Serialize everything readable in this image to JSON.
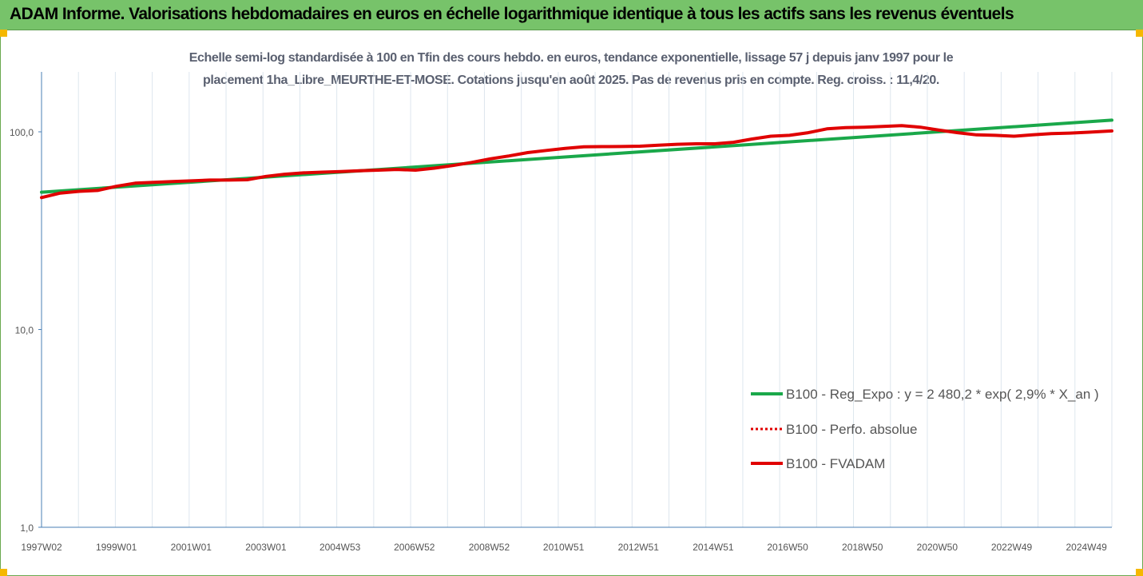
{
  "header": {
    "title": "ADAM Informe. Valorisations hebdomadaires en euros en échelle logarithmique identique à tous les actifs sans les revenus éventuels"
  },
  "chart_data": {
    "type": "line",
    "title_line1": "Echelle semi-log standardisée à 100 en Tfin des cours hebdo. en euros, tendance exponentielle, lissage 57 j depuis janv 1997 pour le",
    "title_line2": "placement 1ha_Libre_MEURTHE-ET-MOSE. Cotations jusqu'en août 2025.  Pas de revenus pris en compte. Reg. croiss. : 11,4/20.",
    "y_scale": "log",
    "ylim": [
      1,
      200
    ],
    "yticks": [
      1,
      10,
      100
    ],
    "ytick_labels": [
      "1,0",
      "10,0",
      "100,0"
    ],
    "xlim": [
      1997.0,
      2025.62
    ],
    "xtick_labels": [
      "1997W02",
      "1999W01",
      "2001W01",
      "2003W01",
      "2004W53",
      "2006W52",
      "2008W52",
      "2010W51",
      "2012W51",
      "2014W51",
      "2016W50",
      "2018W50",
      "2020W50",
      "2022W49",
      "2024W49"
    ],
    "xtick_positions": [
      1997.0,
      1999.0,
      2001.0,
      2003.0,
      2004.98,
      2006.97,
      2008.97,
      2010.96,
      2012.96,
      2014.96,
      2016.95,
      2018.95,
      2020.95,
      2022.94,
      2024.94
    ],
    "grid": "vertical",
    "legend_position": "right",
    "series": [
      {
        "name": "B100 - Reg_Expo : y = 2 480,2 * exp( 2,9% *  X_an )",
        "color": "#1aa84a",
        "style": "solid",
        "x": [
          1997.0,
          2025.62
        ],
        "y": [
          49.5,
          114.5
        ]
      },
      {
        "name": "B100 - Perfo. absolue",
        "color": "#e00000",
        "style": "dotted",
        "x": [],
        "y": []
      },
      {
        "name": "B100 - FVADAM",
        "color": "#e00000",
        "style": "solid",
        "x": [
          1997.0,
          1997.5,
          1998.0,
          1998.5,
          1999.0,
          1999.5,
          2000.0,
          2000.5,
          2001.0,
          2001.5,
          2002.0,
          2002.5,
          2003.0,
          2003.5,
          2004.0,
          2004.5,
          2005.0,
          2005.5,
          2006.0,
          2006.5,
          2007.0,
          2007.5,
          2008.0,
          2008.5,
          2009.0,
          2009.5,
          2010.0,
          2010.5,
          2011.0,
          2011.5,
          2012.0,
          2012.5,
          2013.0,
          2013.5,
          2014.0,
          2014.5,
          2015.0,
          2015.5,
          2016.0,
          2016.5,
          2017.0,
          2017.5,
          2018.0,
          2018.5,
          2019.0,
          2019.5,
          2020.0,
          2020.5,
          2021.0,
          2021.5,
          2022.0,
          2022.5,
          2023.0,
          2023.5,
          2024.0,
          2024.5,
          2025.0,
          2025.62
        ],
        "y": [
          46.5,
          49.0,
          50.0,
          50.5,
          53.0,
          55.0,
          55.5,
          56.0,
          56.5,
          57.0,
          57.0,
          57.2,
          59.5,
          61.0,
          62.0,
          62.5,
          63.0,
          63.5,
          64.0,
          64.5,
          64.0,
          65.5,
          67.5,
          70.0,
          73.0,
          75.5,
          78.5,
          80.5,
          82.5,
          84.0,
          84.2,
          84.3,
          84.6,
          85.5,
          86.5,
          87.0,
          87.0,
          88.5,
          92.0,
          95.0,
          96.0,
          99.0,
          103.5,
          105.0,
          105.5,
          106.5,
          107.5,
          105.5,
          102.0,
          99.0,
          96.5,
          96.0,
          95.0,
          96.5,
          98.0,
          98.5,
          99.5,
          101.0
        ]
      }
    ]
  }
}
